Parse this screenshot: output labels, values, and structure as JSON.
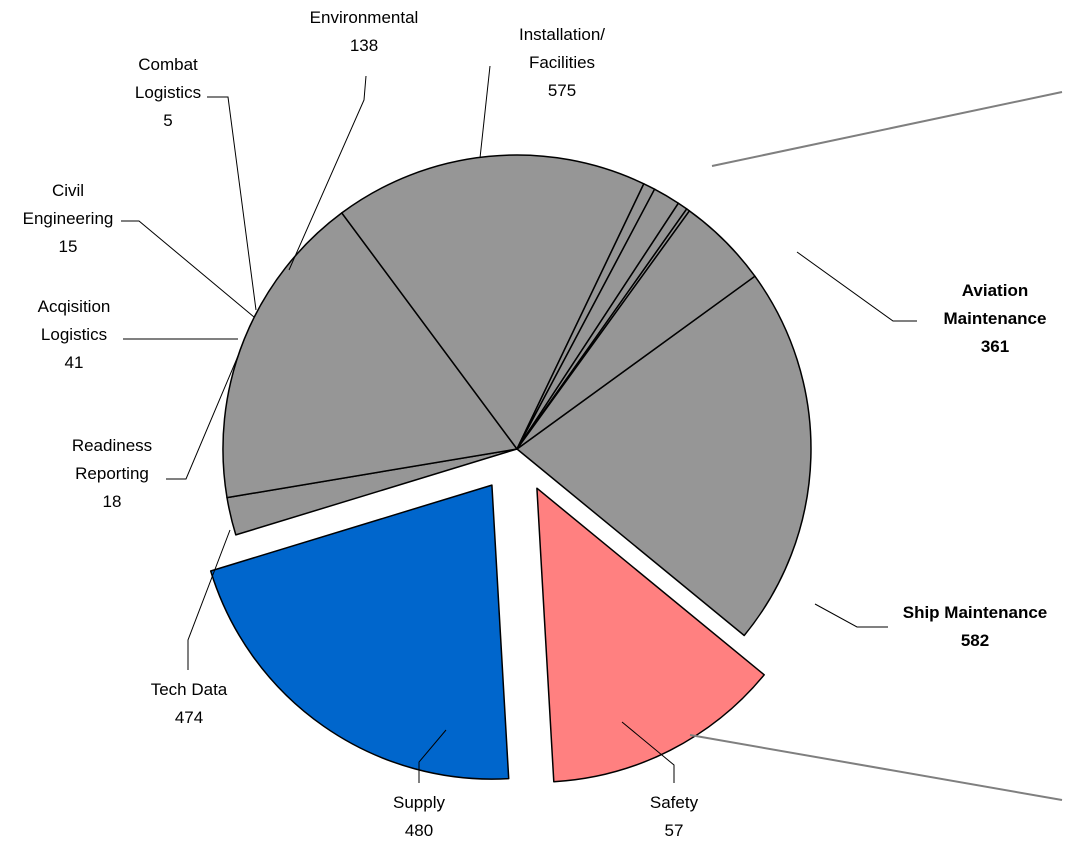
{
  "chart_data": {
    "type": "pie",
    "title": "",
    "legend": "none",
    "slices": [
      {
        "label_lines": [
          "Installation/",
          "Facilities"
        ],
        "value": 575,
        "color": "#969696",
        "exploded": false
      },
      {
        "label_lines": [
          "Aviation",
          "Maintenance"
        ],
        "value": 361,
        "color": "#ff8080",
        "exploded": true,
        "bold": true
      },
      {
        "label_lines": [
          "Ship Maintenance"
        ],
        "value": 582,
        "color": "#0066cc",
        "exploded": true,
        "bold": true
      },
      {
        "label_lines": [
          "Safety"
        ],
        "value": 57,
        "color": "#969696",
        "exploded": false
      },
      {
        "label_lines": [
          "Supply"
        ],
        "value": 480,
        "color": "#969696",
        "exploded": false
      },
      {
        "label_lines": [
          "Tech Data"
        ],
        "value": 474,
        "color": "#969696",
        "exploded": false
      },
      {
        "label_lines": [
          "Readiness",
          "Reporting"
        ],
        "value": 18,
        "color": "#969696",
        "exploded": false
      },
      {
        "label_lines": [
          "Acqisition",
          "Logistics"
        ],
        "value": 41,
        "color": "#969696",
        "exploded": false
      },
      {
        "label_lines": [
          "Civil",
          "Engineering"
        ],
        "value": 15,
        "color": "#969696",
        "exploded": false
      },
      {
        "label_lines": [
          "Combat",
          "Logistics"
        ],
        "value": 5,
        "color": "#969696",
        "exploded": false
      },
      {
        "label_lines": [
          "Environmental"
        ],
        "value": 138,
        "color": "#969696",
        "exploded": false
      }
    ]
  }
}
